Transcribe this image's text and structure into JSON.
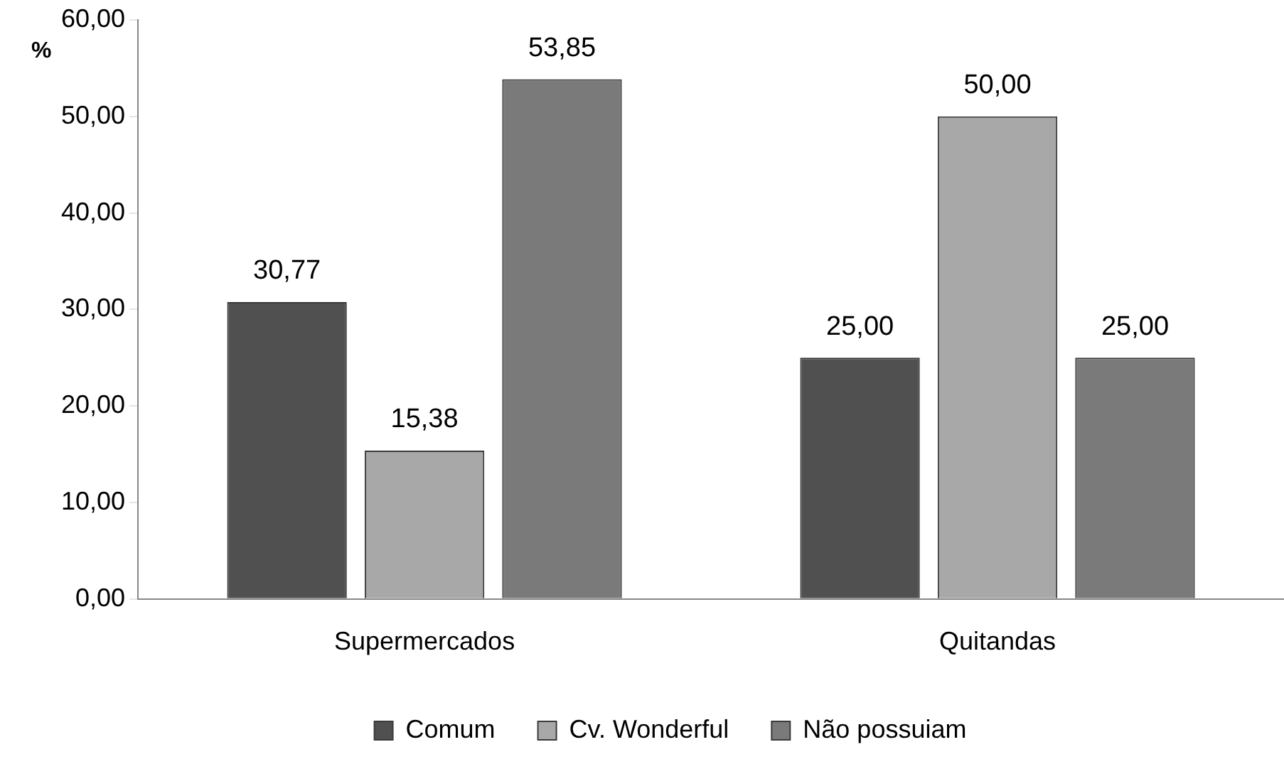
{
  "chart_data": {
    "type": "bar",
    "ylabel": "%",
    "categories": [
      "Supermercados",
      "Quitandas"
    ],
    "series": [
      {
        "name": "Comum",
        "color": "#505050",
        "values": [
          30.77,
          25.0
        ]
      },
      {
        "name": "Cv. Wonderful",
        "color": "#a8a8a8",
        "values": [
          15.38,
          50.0
        ]
      },
      {
        "name": "Não possuiam",
        "color": "#7a7a7a",
        "values": [
          53.85,
          25.0
        ]
      }
    ],
    "value_labels": [
      [
        "30,77",
        "25,00"
      ],
      [
        "15,38",
        "50,00"
      ],
      [
        "53,85",
        "25,00"
      ]
    ],
    "ylim": [
      0,
      60
    ],
    "yticks": [
      {
        "value": 0,
        "label": "0,00"
      },
      {
        "value": 10,
        "label": "10,00"
      },
      {
        "value": 20,
        "label": "20,00"
      },
      {
        "value": 30,
        "label": "30,00"
      },
      {
        "value": 40,
        "label": "40,00"
      },
      {
        "value": 50,
        "label": "50,00"
      },
      {
        "value": 60,
        "label": "60,00"
      }
    ],
    "grid": false,
    "legend": "bottom"
  }
}
